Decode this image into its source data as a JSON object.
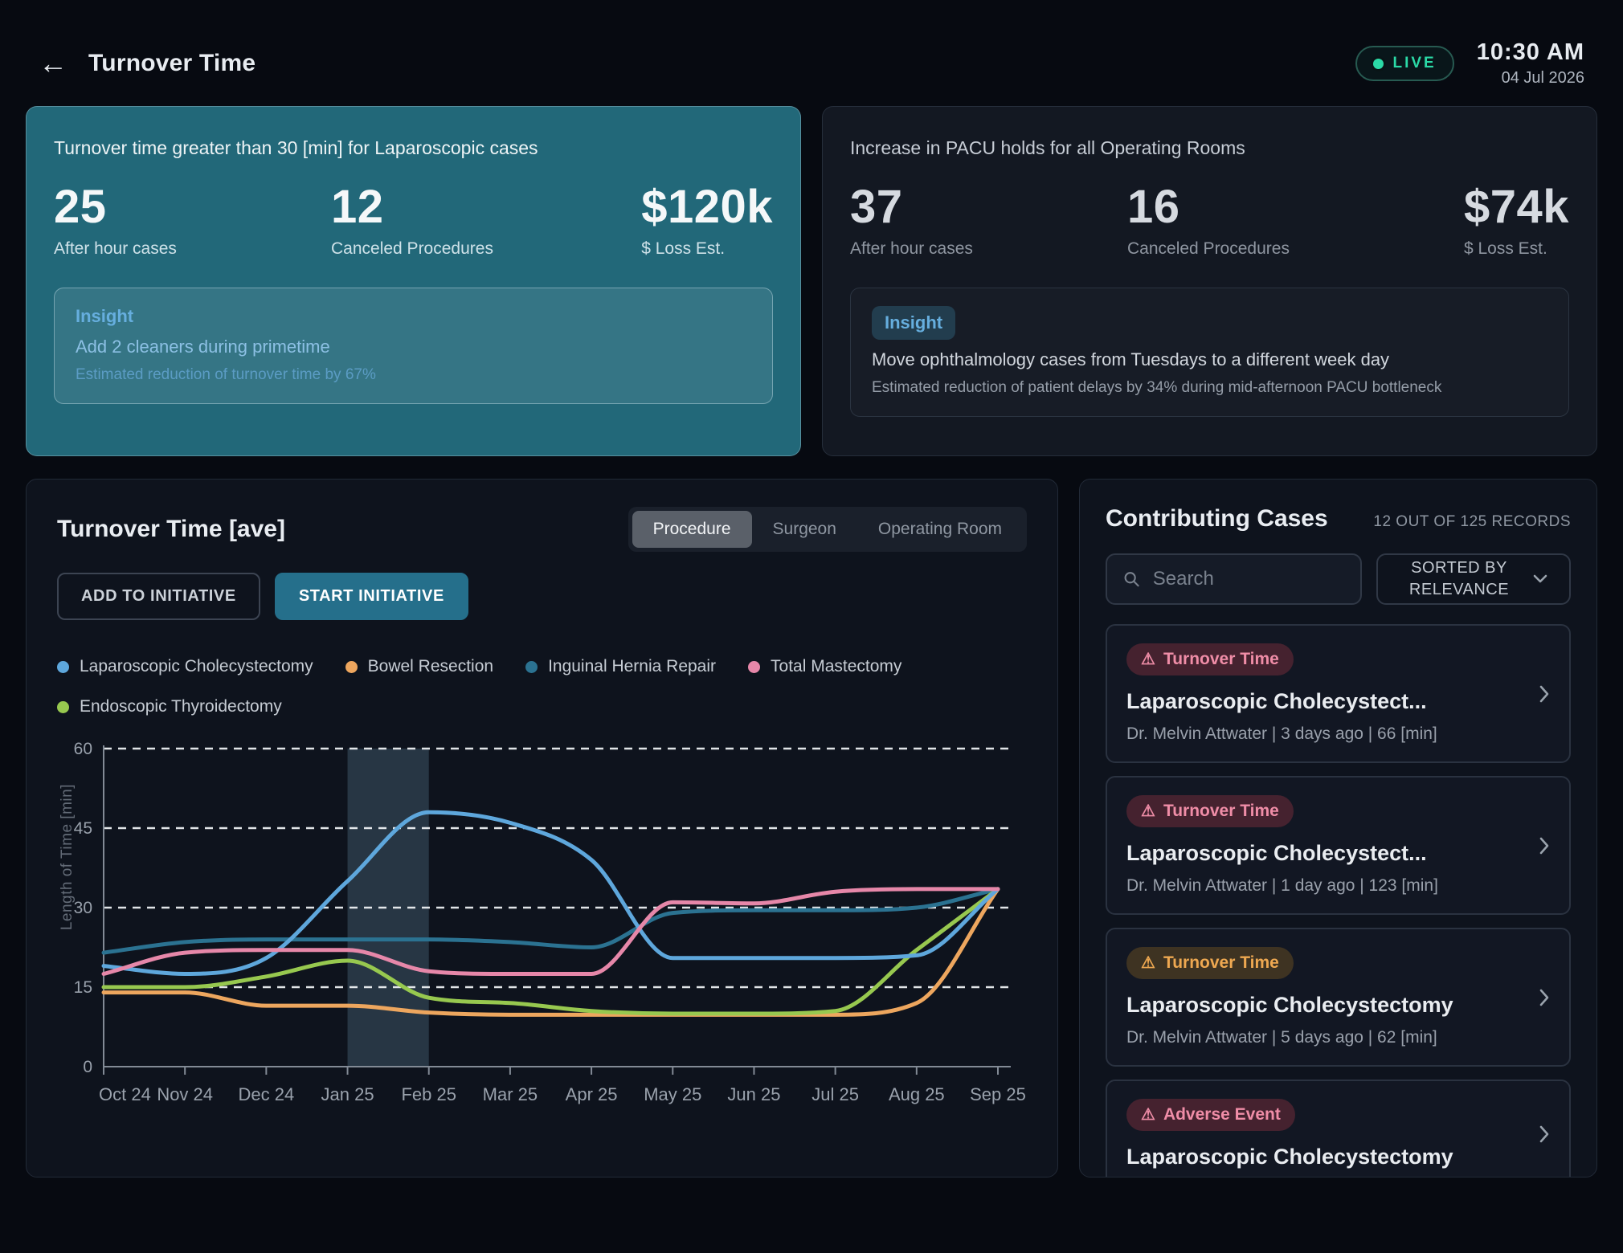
{
  "header": {
    "title": "Turnover Time",
    "back_icon": "arrow-left",
    "live_label": "LIVE",
    "time": "10:30 AM",
    "date": "04 Jul 2026",
    "live_color": "#2bd9a6"
  },
  "alert_cards": [
    {
      "title": "Turnover time greater than 30 [min] for Laparoscopic cases",
      "stats": [
        {
          "value": "25",
          "label": "After hour cases"
        },
        {
          "value": "12",
          "label": "Canceled Procedures"
        },
        {
          "value": "$120k",
          "label": "$ Loss Est."
        }
      ],
      "insight_label": "Insight",
      "insight_text": "Add 2 cleaners during primetime",
      "insight_sub": "Estimated reduction of turnover time by 67%"
    },
    {
      "title": "Increase in PACU holds for all Operating Rooms",
      "stats": [
        {
          "value": "37",
          "label": "After hour cases"
        },
        {
          "value": "16",
          "label": "Canceled Procedures"
        },
        {
          "value": "$74k",
          "label": "$ Loss Est."
        }
      ],
      "insight_label": "Insight",
      "insight_text": "Move ophthalmology cases from Tuesdays to a different week day",
      "insight_sub": "Estimated reduction of patient delays by 34% during mid-afternoon PACU bottleneck"
    }
  ],
  "chart_panel": {
    "title": "Turnover Time [ave]",
    "tabs": [
      "Procedure",
      "Surgeon",
      "Operating Room"
    ],
    "active_tab": "Procedure",
    "add_button": "ADD TO INITIATIVE",
    "start_button": "START INITIATIVE"
  },
  "chart_data": {
    "type": "line",
    "x": [
      "Oct 24",
      "Nov 24",
      "Dec 24",
      "Jan 25",
      "Feb 25",
      "Mar 25",
      "Apr 25",
      "May 25",
      "Jun 25",
      "Jul 25",
      "Aug 25",
      "Sep 25"
    ],
    "ylabel": "Length of Time [min]",
    "ylim": [
      0,
      60
    ],
    "yticks": [
      0,
      15,
      30,
      45,
      60
    ],
    "grid": "horizontal dashed at 15/30/45/60, solid baseline at 0",
    "legend_position": "top",
    "highlight_band": {
      "from": "Jan 25",
      "to": "Feb 25",
      "color": "rgba(94,131,153,0.32)"
    },
    "series": [
      {
        "name": "Laparoscopic Cholecystectomy",
        "color": "#5ea7dc",
        "z": 3,
        "values": [
          19,
          17.5,
          20.5,
          35,
          48,
          46,
          39,
          20.5,
          20.5,
          20.5,
          21,
          33.5
        ]
      },
      {
        "name": "Bowel Resection",
        "color": "#eda65e",
        "z": 1,
        "values": [
          14,
          14,
          11.5,
          11.5,
          10.2,
          9.8,
          9.8,
          9.8,
          9.8,
          9.8,
          12,
          33.5
        ]
      },
      {
        "name": "Inguinal Hernia Repair",
        "color": "#2b7291",
        "z": 0,
        "values": [
          21.5,
          23.5,
          24,
          24,
          24,
          23.5,
          22.5,
          29,
          29.5,
          29.5,
          30,
          33.5
        ]
      },
      {
        "name": "Total Mastectomy",
        "color": "#e687a9",
        "z": 4,
        "values": [
          17.5,
          21.5,
          22,
          22,
          18,
          17.5,
          17.5,
          31,
          30.8,
          33,
          33.5,
          33.5
        ]
      },
      {
        "name": "Endoscopic Thyroidectomy",
        "color": "#97c84f",
        "z": 2,
        "values": [
          15,
          15,
          17,
          20,
          13,
          12,
          10.5,
          10,
          10,
          10.5,
          22,
          33.5
        ]
      }
    ]
  },
  "sidebar": {
    "title": "Contributing Cases",
    "records": "12 OUT OF 125 RECORDS",
    "search_placeholder": "Search",
    "search_icon": "magnifier",
    "sort_label": "SORTED BY RELEVANCE",
    "sort_icon": "chevron-down",
    "case_chevron_icon": "chevron-right",
    "badge_icon": "warning-triangle",
    "warning_glyph": "⚠",
    "cases": [
      {
        "badge": "Turnover Time",
        "variant": "pink",
        "title": "Laparoscopic Cholecystect...",
        "meta": "Dr. Melvin Attwater | 3 days ago | 66 [min]"
      },
      {
        "badge": "Turnover Time",
        "variant": "pink",
        "title": "Laparoscopic Cholecystect...",
        "meta": "Dr. Melvin Attwater | 1 day ago | 123 [min]"
      },
      {
        "badge": "Turnover Time",
        "variant": "amber",
        "title": "Laparoscopic Cholecystectomy",
        "meta": "Dr. Melvin Attwater | 5 days ago | 62 [min]"
      },
      {
        "badge": "Adverse Event",
        "variant": "pink",
        "title": "Laparoscopic Cholecystectomy",
        "meta": ""
      }
    ]
  }
}
